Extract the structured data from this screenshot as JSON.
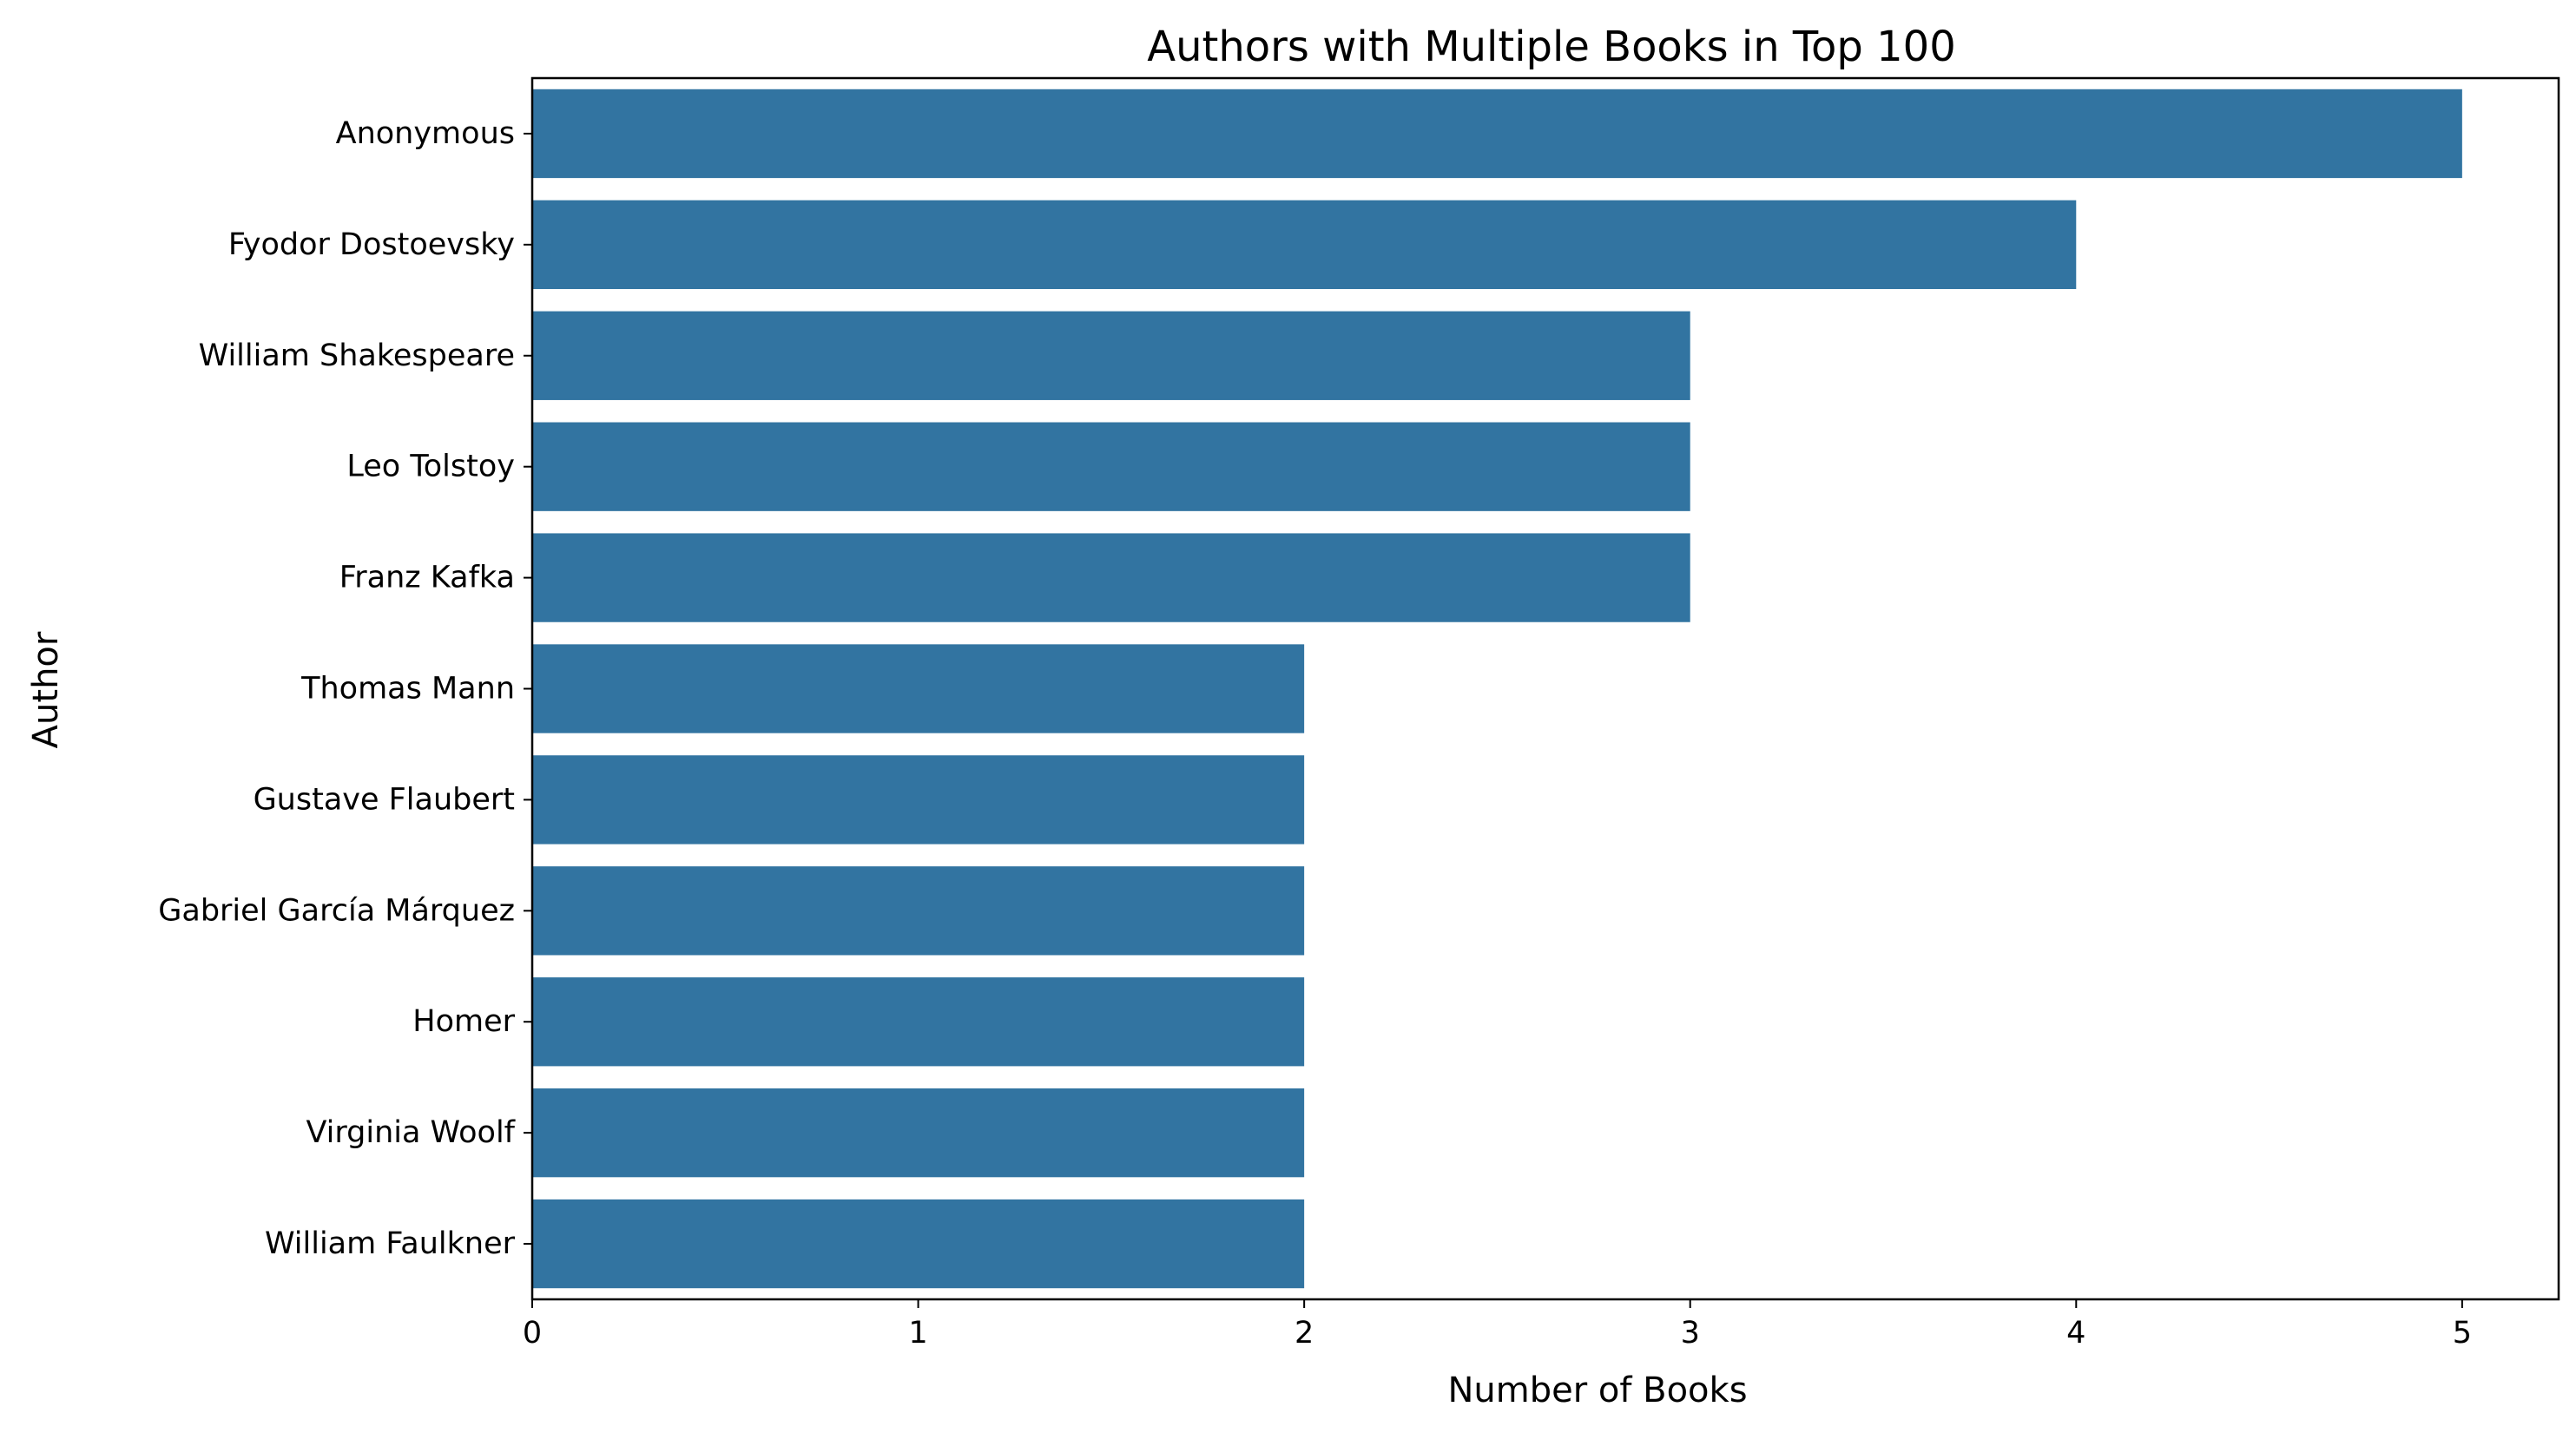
{
  "chart_data": {
    "type": "bar",
    "orientation": "horizontal",
    "title": "Authors with Multiple Books in Top 100",
    "xlabel": "Number of Books",
    "ylabel": "Author",
    "categories": [
      "Anonymous",
      "Fyodor Dostoevsky",
      "William Shakespeare",
      "Leo Tolstoy",
      "Franz Kafka",
      "Thomas Mann",
      "Gustave Flaubert",
      "Gabriel García Márquez",
      "Homer",
      "Virginia Woolf",
      "William Faulkner"
    ],
    "values": [
      5,
      4,
      3,
      3,
      3,
      2,
      2,
      2,
      2,
      2,
      2
    ],
    "xlim": [
      0,
      5.25
    ],
    "xticks": [
      0,
      1,
      2,
      3,
      4,
      5
    ],
    "grid": false,
    "bar_color": "#3274a1"
  }
}
